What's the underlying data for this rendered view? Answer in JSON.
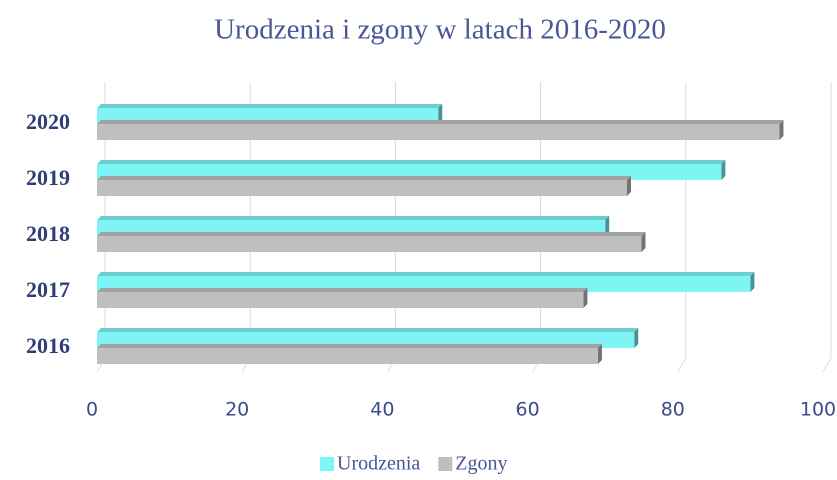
{
  "chart_data": {
    "type": "bar",
    "orientation": "horizontal",
    "title": "Urodzenia i zgony w latach 2016-2020",
    "categories": [
      "2016",
      "2017",
      "2018",
      "2019",
      "2020"
    ],
    "series": [
      {
        "name": "Urodzenia",
        "color": "#7ff4f4",
        "values": [
          74,
          90,
          70,
          86,
          47
        ]
      },
      {
        "name": "Zgony",
        "color": "#bfbfbf",
        "values": [
          69,
          67,
          75,
          73,
          94
        ]
      }
    ],
    "xlim": [
      0,
      100
    ],
    "xticks": [
      0,
      20,
      40,
      60,
      80,
      100
    ],
    "grid": true
  }
}
